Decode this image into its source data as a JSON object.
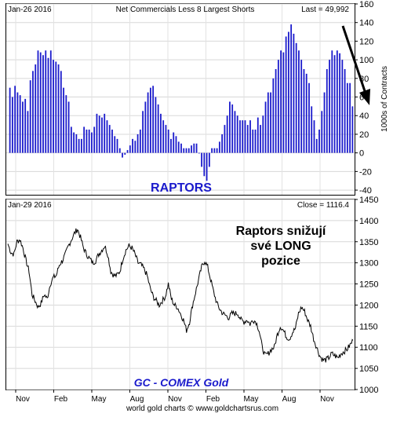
{
  "chart_data": [
    {
      "type": "bar",
      "date_label": "Jan-26  2016",
      "title": "Net Commercials Less 8 Largest Shorts",
      "last_label": "Last = 49,992",
      "ylabel": "1000s of Contracts",
      "ylim": [
        -45,
        160
      ],
      "yticks": [
        "160",
        "140",
        "120",
        "100",
        "80",
        "60",
        "40",
        "20",
        "0",
        "-20",
        "-40"
      ],
      "grid": true,
      "annotation": "RAPTORS",
      "bar_color": "#1a1acc",
      "annotation_color": "#1a1acc",
      "arrow_color": "#000000",
      "values": [
        70,
        60,
        72,
        65,
        62,
        55,
        58,
        45,
        78,
        88,
        95,
        110,
        108,
        105,
        110,
        102,
        110,
        100,
        98,
        95,
        88,
        70,
        62,
        55,
        28,
        22,
        20,
        15,
        15,
        28,
        25,
        25,
        22,
        28,
        42,
        40,
        38,
        42,
        35,
        30,
        25,
        18,
        15,
        5,
        -5,
        -2,
        3,
        8,
        15,
        13,
        20,
        25,
        45,
        55,
        65,
        70,
        72,
        60,
        52,
        42,
        35,
        30,
        25,
        15,
        22,
        18,
        12,
        10,
        5,
        5,
        5,
        8,
        10,
        10,
        0,
        -15,
        -25,
        -30,
        -15,
        5,
        5,
        5,
        12,
        20,
        30,
        40,
        55,
        52,
        45,
        40,
        35,
        35,
        35,
        30,
        35,
        25,
        25,
        38,
        30,
        40,
        55,
        65,
        65,
        80,
        90,
        100,
        110,
        108,
        125,
        130,
        138,
        128,
        118,
        110,
        100,
        90,
        85,
        75,
        50,
        35,
        15,
        25,
        45,
        65,
        90,
        100,
        110,
        105,
        110,
        107,
        100,
        90,
        75,
        75,
        50
      ]
    },
    {
      "type": "line",
      "date_label": "Jan-29  2016",
      "close_label": "Close = 1116.4",
      "ylim": [
        1000,
        1450
      ],
      "yticks": [
        "1450",
        "1400",
        "1350",
        "1300",
        "1250",
        "1200",
        "1150",
        "1100",
        "1050",
        "1000"
      ],
      "grid": true,
      "annotation": "GC - COMEX Gold",
      "annotation_color": "#1a1acc",
      "line_color": "#000000",
      "months": [
        "Nov",
        "Feb",
        "May",
        "Aug",
        "Nov",
        "Feb",
        "May",
        "Aug",
        "Nov"
      ],
      "values": [
        1345,
        1325,
        1320,
        1350,
        1355,
        1335,
        1305,
        1280,
        1225,
        1210,
        1195,
        1205,
        1225,
        1215,
        1250,
        1265,
        1270,
        1295,
        1305,
        1320,
        1340,
        1355,
        1370,
        1380,
        1360,
        1335,
        1320,
        1310,
        1300,
        1305,
        1320,
        1330,
        1340,
        1320,
        1280,
        1270,
        1270,
        1280,
        1310,
        1330,
        1340,
        1335,
        1320,
        1300,
        1295,
        1285,
        1270,
        1240,
        1220,
        1210,
        1200,
        1210,
        1220,
        1250,
        1215,
        1200,
        1195,
        1180,
        1165,
        1140,
        1160,
        1200,
        1230,
        1260,
        1290,
        1305,
        1290,
        1260,
        1230,
        1205,
        1190,
        1180,
        1175,
        1170,
        1180,
        1180,
        1180,
        1165,
        1160,
        1165,
        1155,
        1165,
        1160,
        1140,
        1100,
        1080,
        1085,
        1095,
        1100,
        1130,
        1150,
        1140,
        1125,
        1120,
        1135,
        1145,
        1180,
        1195,
        1185,
        1165,
        1150,
        1120,
        1100,
        1080,
        1070,
        1070,
        1075,
        1085,
        1080,
        1075,
        1085,
        1090,
        1095,
        1105,
        1116.4
      ]
    }
  ],
  "footer": "world gold charts © www.goldchartsrus.com",
  "overlay_text": [
    "Raptors snižují",
    "své LONG",
    "pozice"
  ]
}
